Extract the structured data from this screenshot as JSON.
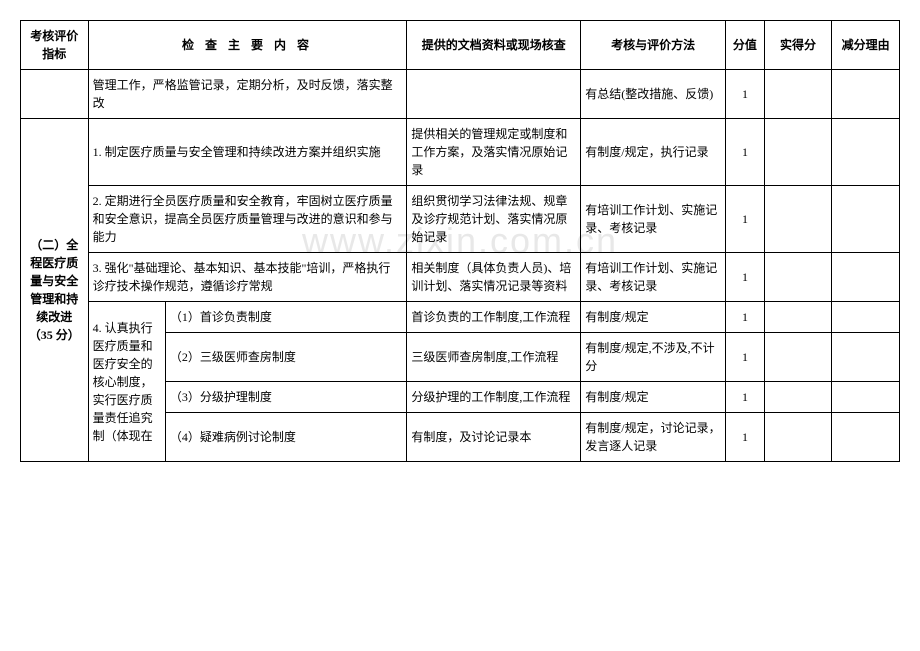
{
  "watermark": "www.zixin.com.cn",
  "headers": {
    "indicator": "考核评价指标",
    "content": "检 查 主 要 内 容",
    "docs": "提供的文档资料或现场核查",
    "method": "考核与评价方法",
    "score": "分值",
    "actual": "实得分",
    "reason": "减分理由"
  },
  "row1": {
    "content": "管理工作，严格监管记录，定期分析，及时反馈，落实整改",
    "docs": "",
    "method": "有总结(整改措施、反馈)",
    "score": "1"
  },
  "section": {
    "title": "（二）全程医疗质量与安全管理和持续改进（35 分）"
  },
  "rows": [
    {
      "content": "1. 制定医疗质量与安全管理和持续改进方案并组织实施",
      "docs": "提供相关的管理规定或制度和工作方案，及落实情况原始记录",
      "method": "有制度/规定，执行记录",
      "score": "1"
    },
    {
      "content": "2. 定期进行全员医疗质量和安全教育，牢固树立医疗质量和安全意识，提高全员医疗质量管理与改进的意识和参与能力",
      "docs": "组织贯彻学习法律法规、规章及诊疗规范计划、落实情况原始记录",
      "method": "有培训工作计划、实施记录、考核记录",
      "score": "1"
    },
    {
      "content": "3. 强化\"基础理论、基本知识、基本技能\"培训，严格执行诊疗技术操作规范，遵循诊疗常规",
      "docs": "相关制度（具体负责人员)、培训计划、落实情况记录等资料",
      "method": "有培训工作计划、实施记录、考核记录",
      "score": "1"
    }
  ],
  "subsection": {
    "label": "4. 认真执行医疗质量和医疗安全的核心制度，实行医疗质量责任追究制（体现在"
  },
  "subrows": [
    {
      "content": "（1）首诊负责制度",
      "docs": "首诊负责的工作制度,工作流程",
      "method": "有制度/规定",
      "score": "1"
    },
    {
      "content": "（2）三级医师查房制度",
      "docs": "三级医师查房制度,工作流程",
      "method": "有制度/规定,不涉及,不计分",
      "score": "1"
    },
    {
      "content": "（3）分级护理制度",
      "docs": "分级护理的工作制度,工作流程",
      "method": "有制度/规定",
      "score": "1"
    },
    {
      "content": "（4）疑难病例讨论制度",
      "docs": "有制度，及讨论记录本",
      "method": "有制度/规定，讨论记录，发言逐人记录",
      "score": "1"
    }
  ]
}
